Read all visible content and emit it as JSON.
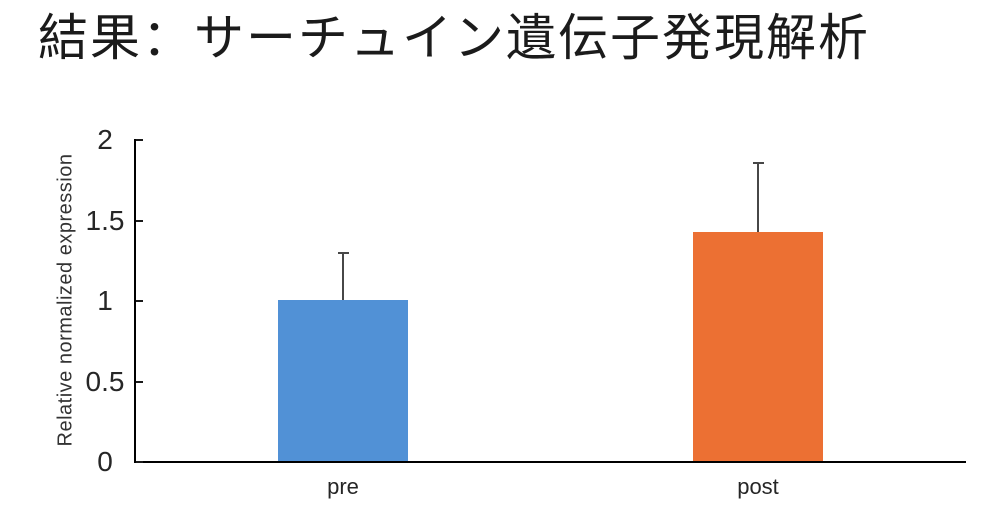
{
  "slide": {
    "title": "結果：サーチュイン遺伝子発現解析"
  },
  "chart_data": {
    "type": "bar",
    "title": "",
    "categories": [
      "pre",
      "post"
    ],
    "values": [
      1.0,
      1.42
    ],
    "errors_plus": [
      0.29,
      0.43
    ],
    "bar_colors": [
      "#5191D6",
      "#EC7033"
    ],
    "error_bar_color": "#474747",
    "axis_color": "#000000",
    "ylabel": "Relative normalized expression",
    "xlabel": "",
    "ylim": [
      0,
      2
    ],
    "ytick_step": 0.5,
    "ytick_labels": [
      "0",
      "0.5",
      "1",
      "1.5",
      "2"
    ],
    "grid": false,
    "legend_position": "none"
  }
}
